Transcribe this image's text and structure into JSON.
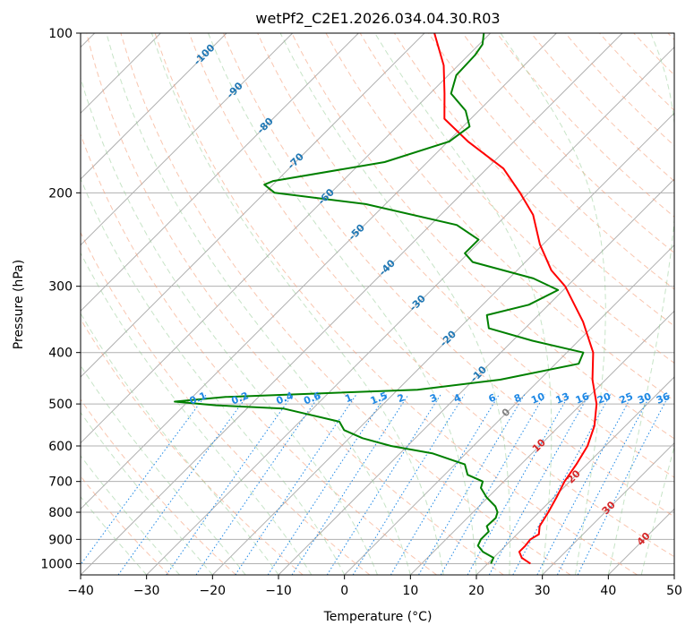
{
  "chart_data": {
    "type": "line",
    "title": "wetPf2_C2E1.2026.034.04.30.R03",
    "xlabel": "Temperature (°C)",
    "ylabel": "Pressure (hPa)",
    "xlim": [
      -40,
      50
    ],
    "ylim": [
      1050,
      100
    ],
    "y_scale": "log",
    "grid": true,
    "x_ticks": [
      -40,
      -30,
      -20,
      -10,
      0,
      10,
      20,
      30,
      40,
      50
    ],
    "y_ticks": [
      100,
      200,
      300,
      400,
      500,
      600,
      700,
      800,
      900,
      1000
    ],
    "series": [
      {
        "role": "temperature",
        "color": "#ff0000",
        "points": [
          {
            "p": 1000,
            "t": 26.5
          },
          {
            "p": 975,
            "t": 24.3
          },
          {
            "p": 950,
            "t": 23.0
          },
          {
            "p": 925,
            "t": 23.0
          },
          {
            "p": 900,
            "t": 22.8
          },
          {
            "p": 880,
            "t": 23.3
          },
          {
            "p": 850,
            "t": 22.2
          },
          {
            "p": 800,
            "t": 21.4
          },
          {
            "p": 750,
            "t": 20.4
          },
          {
            "p": 700,
            "t": 19.2
          },
          {
            "p": 650,
            "t": 18.4
          },
          {
            "p": 600,
            "t": 17.3
          },
          {
            "p": 550,
            "t": 15.3
          },
          {
            "p": 500,
            "t": 12.3
          },
          {
            "p": 450,
            "t": 8.0
          },
          {
            "p": 400,
            "t": 4.0
          },
          {
            "p": 350,
            "t": -2.2
          },
          {
            "p": 300,
            "t": -10.3
          },
          {
            "p": 280,
            "t": -14.8
          },
          {
            "p": 250,
            "t": -20.5
          },
          {
            "p": 220,
            "t": -26.0
          },
          {
            "p": 200,
            "t": -31.3
          },
          {
            "p": 180,
            "t": -37.5
          },
          {
            "p": 160,
            "t": -47.0
          },
          {
            "p": 145,
            "t": -54.0
          },
          {
            "p": 130,
            "t": -57.8
          },
          {
            "p": 115,
            "t": -62.2
          },
          {
            "p": 100,
            "t": -68.5
          }
        ]
      },
      {
        "role": "dewpoint",
        "color": "#008000",
        "points": [
          {
            "p": 1000,
            "t": 20.5
          },
          {
            "p": 975,
            "t": 20.0
          },
          {
            "p": 950,
            "t": 17.5
          },
          {
            "p": 925,
            "t": 15.8
          },
          {
            "p": 900,
            "t": 15.3
          },
          {
            "p": 870,
            "t": 15.3
          },
          {
            "p": 850,
            "t": 14.2
          },
          {
            "p": 820,
            "t": 14.3
          },
          {
            "p": 800,
            "t": 13.7
          },
          {
            "p": 780,
            "t": 12.5
          },
          {
            "p": 750,
            "t": 9.8
          },
          {
            "p": 720,
            "t": 7.5
          },
          {
            "p": 700,
            "t": 6.8
          },
          {
            "p": 680,
            "t": 3.5
          },
          {
            "p": 650,
            "t": 1.5
          },
          {
            "p": 620,
            "t": -5.0
          },
          {
            "p": 600,
            "t": -12.5
          },
          {
            "p": 580,
            "t": -18.0
          },
          {
            "p": 560,
            "t": -22.0
          },
          {
            "p": 540,
            "t": -24.0
          },
          {
            "p": 510,
            "t": -34.5
          },
          {
            "p": 503,
            "t": -45.2
          },
          {
            "p": 495,
            "t": -52.0
          },
          {
            "p": 485,
            "t": -45.0
          },
          {
            "p": 470,
            "t": -17.0
          },
          {
            "p": 450,
            "t": -6.0
          },
          {
            "p": 420,
            "t": 3.5
          },
          {
            "p": 400,
            "t": 2.5
          },
          {
            "p": 380,
            "t": -7.0
          },
          {
            "p": 360,
            "t": -15.5
          },
          {
            "p": 340,
            "t": -17.8
          },
          {
            "p": 325,
            "t": -13.0
          },
          {
            "p": 305,
            "t": -10.8
          },
          {
            "p": 290,
            "t": -16.3
          },
          {
            "p": 270,
            "t": -28.0
          },
          {
            "p": 260,
            "t": -30.5
          },
          {
            "p": 245,
            "t": -30.5
          },
          {
            "p": 230,
            "t": -36.0
          },
          {
            "p": 210,
            "t": -53.0
          },
          {
            "p": 200,
            "t": -68.5
          },
          {
            "p": 193,
            "t": -71.3
          },
          {
            "p": 190,
            "t": -70.5
          },
          {
            "p": 175,
            "t": -56.5
          },
          {
            "p": 160,
            "t": -49.8
          },
          {
            "p": 150,
            "t": -49.0
          },
          {
            "p": 140,
            "t": -52.0
          },
          {
            "p": 130,
            "t": -56.8
          },
          {
            "p": 120,
            "t": -58.8
          },
          {
            "p": 110,
            "t": -59.0
          },
          {
            "p": 105,
            "t": -59.5
          },
          {
            "p": 100,
            "t": -61.0
          }
        ]
      }
    ],
    "isotherm_labels": [
      "-100",
      "-90",
      "-80",
      "-70",
      "-60",
      "-50",
      "-40",
      "-30",
      "-20",
      "-10",
      "0",
      "10",
      "20",
      "30",
      "40"
    ],
    "mixing_ratio_labels": [
      "0.1",
      "0.2",
      "0.4",
      "0.6",
      "1",
      "1.5",
      "2",
      "3",
      "4",
      "6",
      "8",
      "10",
      "13",
      "16",
      "20",
      "25",
      "30",
      "36"
    ]
  }
}
